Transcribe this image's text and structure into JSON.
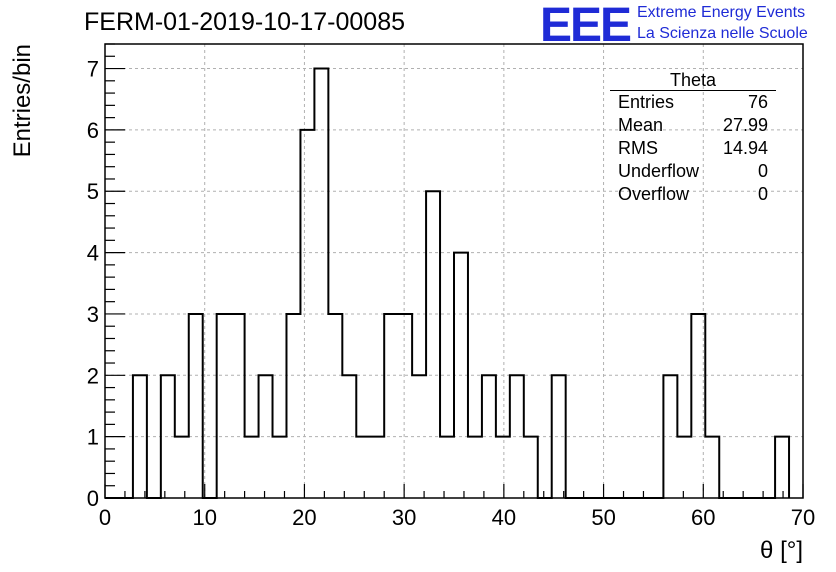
{
  "header": {
    "title": "FERM-01-2019-10-17-00085",
    "logo_text": "EEE",
    "logo_line1": "Extreme Energy Events",
    "logo_line2": "La Scienza nelle Scuole"
  },
  "stats_box": {
    "name": "Theta",
    "rows": [
      {
        "label": "Entries",
        "value": "76"
      },
      {
        "label": "Mean",
        "value": "27.99"
      },
      {
        "label": "RMS",
        "value": "14.94"
      },
      {
        "label": "Underflow",
        "value": "0"
      },
      {
        "label": "Overflow",
        "value": "0"
      }
    ]
  },
  "chart_data": {
    "type": "bar",
    "style": "step-histogram",
    "title": "FERM-01-2019-10-17-00085",
    "xlabel": "θ [°]",
    "ylabel": "Entries/bin",
    "xlim": [
      0,
      70
    ],
    "ylim": [
      0,
      7.4
    ],
    "bin_width": 1.4,
    "bin_edges_start": 0,
    "values": [
      0,
      0,
      2,
      0,
      2,
      1,
      3,
      0,
      3,
      3,
      1,
      2,
      1,
      3,
      6,
      7,
      3,
      2,
      1,
      1,
      3,
      3,
      2,
      5,
      1,
      4,
      1,
      2,
      1,
      2,
      1,
      0,
      2,
      0,
      0,
      0,
      0,
      0,
      0,
      0,
      2,
      1,
      3,
      1,
      0,
      0,
      0,
      0,
      1
    ],
    "x_ticks": [
      0,
      10,
      20,
      30,
      40,
      50,
      60,
      70
    ],
    "y_ticks": [
      0,
      1,
      2,
      3,
      4,
      5,
      6,
      7
    ],
    "grid": true,
    "line_color": "#000000",
    "grid_color": "#b0b0b0"
  }
}
